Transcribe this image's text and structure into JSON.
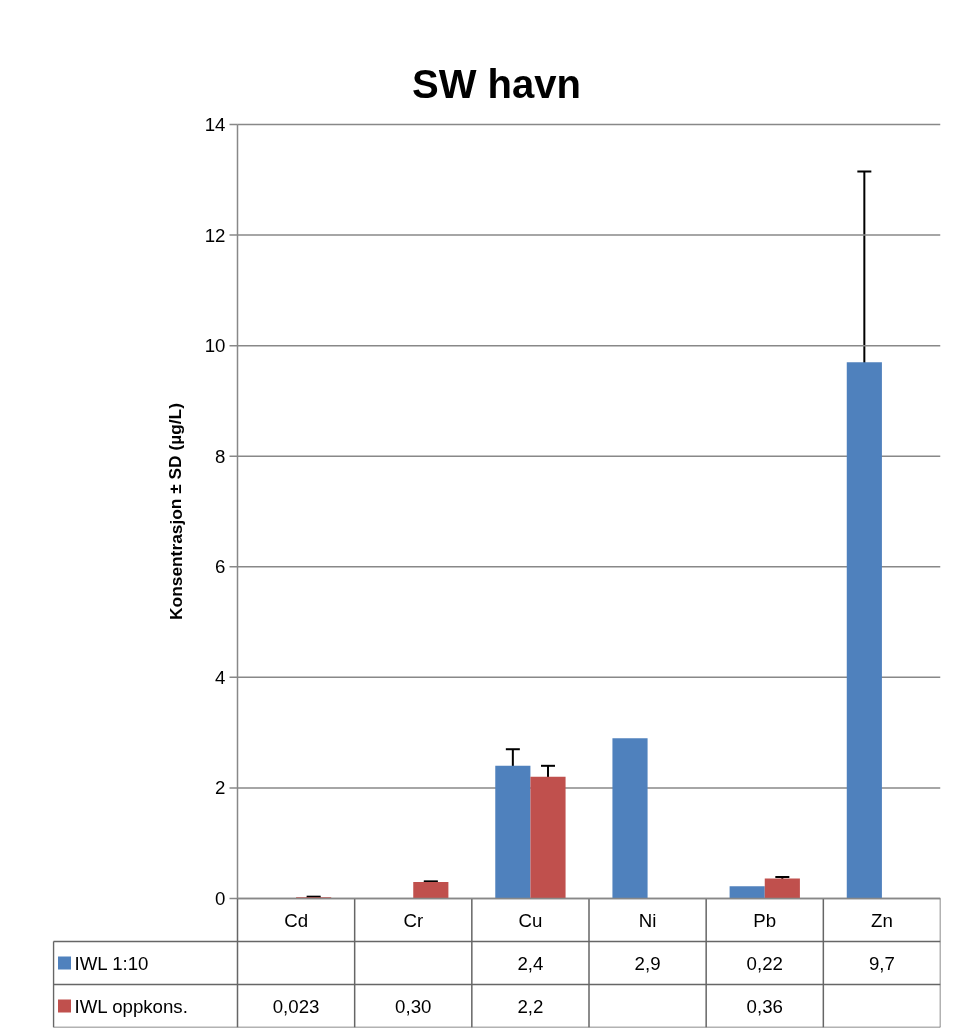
{
  "chart_data": {
    "type": "bar",
    "title": "SW havn",
    "ylabel": "Konsentrasjon ± SD (µg/L)",
    "categories": [
      "Cd",
      "Cr",
      "Cu",
      "Ni",
      "Pb",
      "Zn"
    ],
    "series": [
      {
        "name": "IWL 1:10",
        "color": "#4f81bd",
        "values": [
          null,
          null,
          2.4,
          2.9,
          0.22,
          9.7
        ],
        "errors": [
          null,
          null,
          0.3,
          null,
          null,
          3.45
        ],
        "value_labels": [
          null,
          null,
          "2,4",
          "2,9",
          "0,22",
          "9,7"
        ]
      },
      {
        "name": "IWL oppkons.",
        "color": "#c0504d",
        "values": [
          0.023,
          0.3,
          2.2,
          null,
          0.36,
          null
        ],
        "errors": [
          0.01,
          0.01,
          0.2,
          null,
          0.03,
          null
        ],
        "value_labels": [
          "0,023",
          "0,30",
          "2,2",
          null,
          "0,36",
          null
        ]
      }
    ],
    "ylim": [
      0,
      14
    ],
    "yticks": [
      0,
      2,
      4,
      6,
      8,
      10,
      12,
      14
    ],
    "grid": "y",
    "legend": "bottom"
  }
}
